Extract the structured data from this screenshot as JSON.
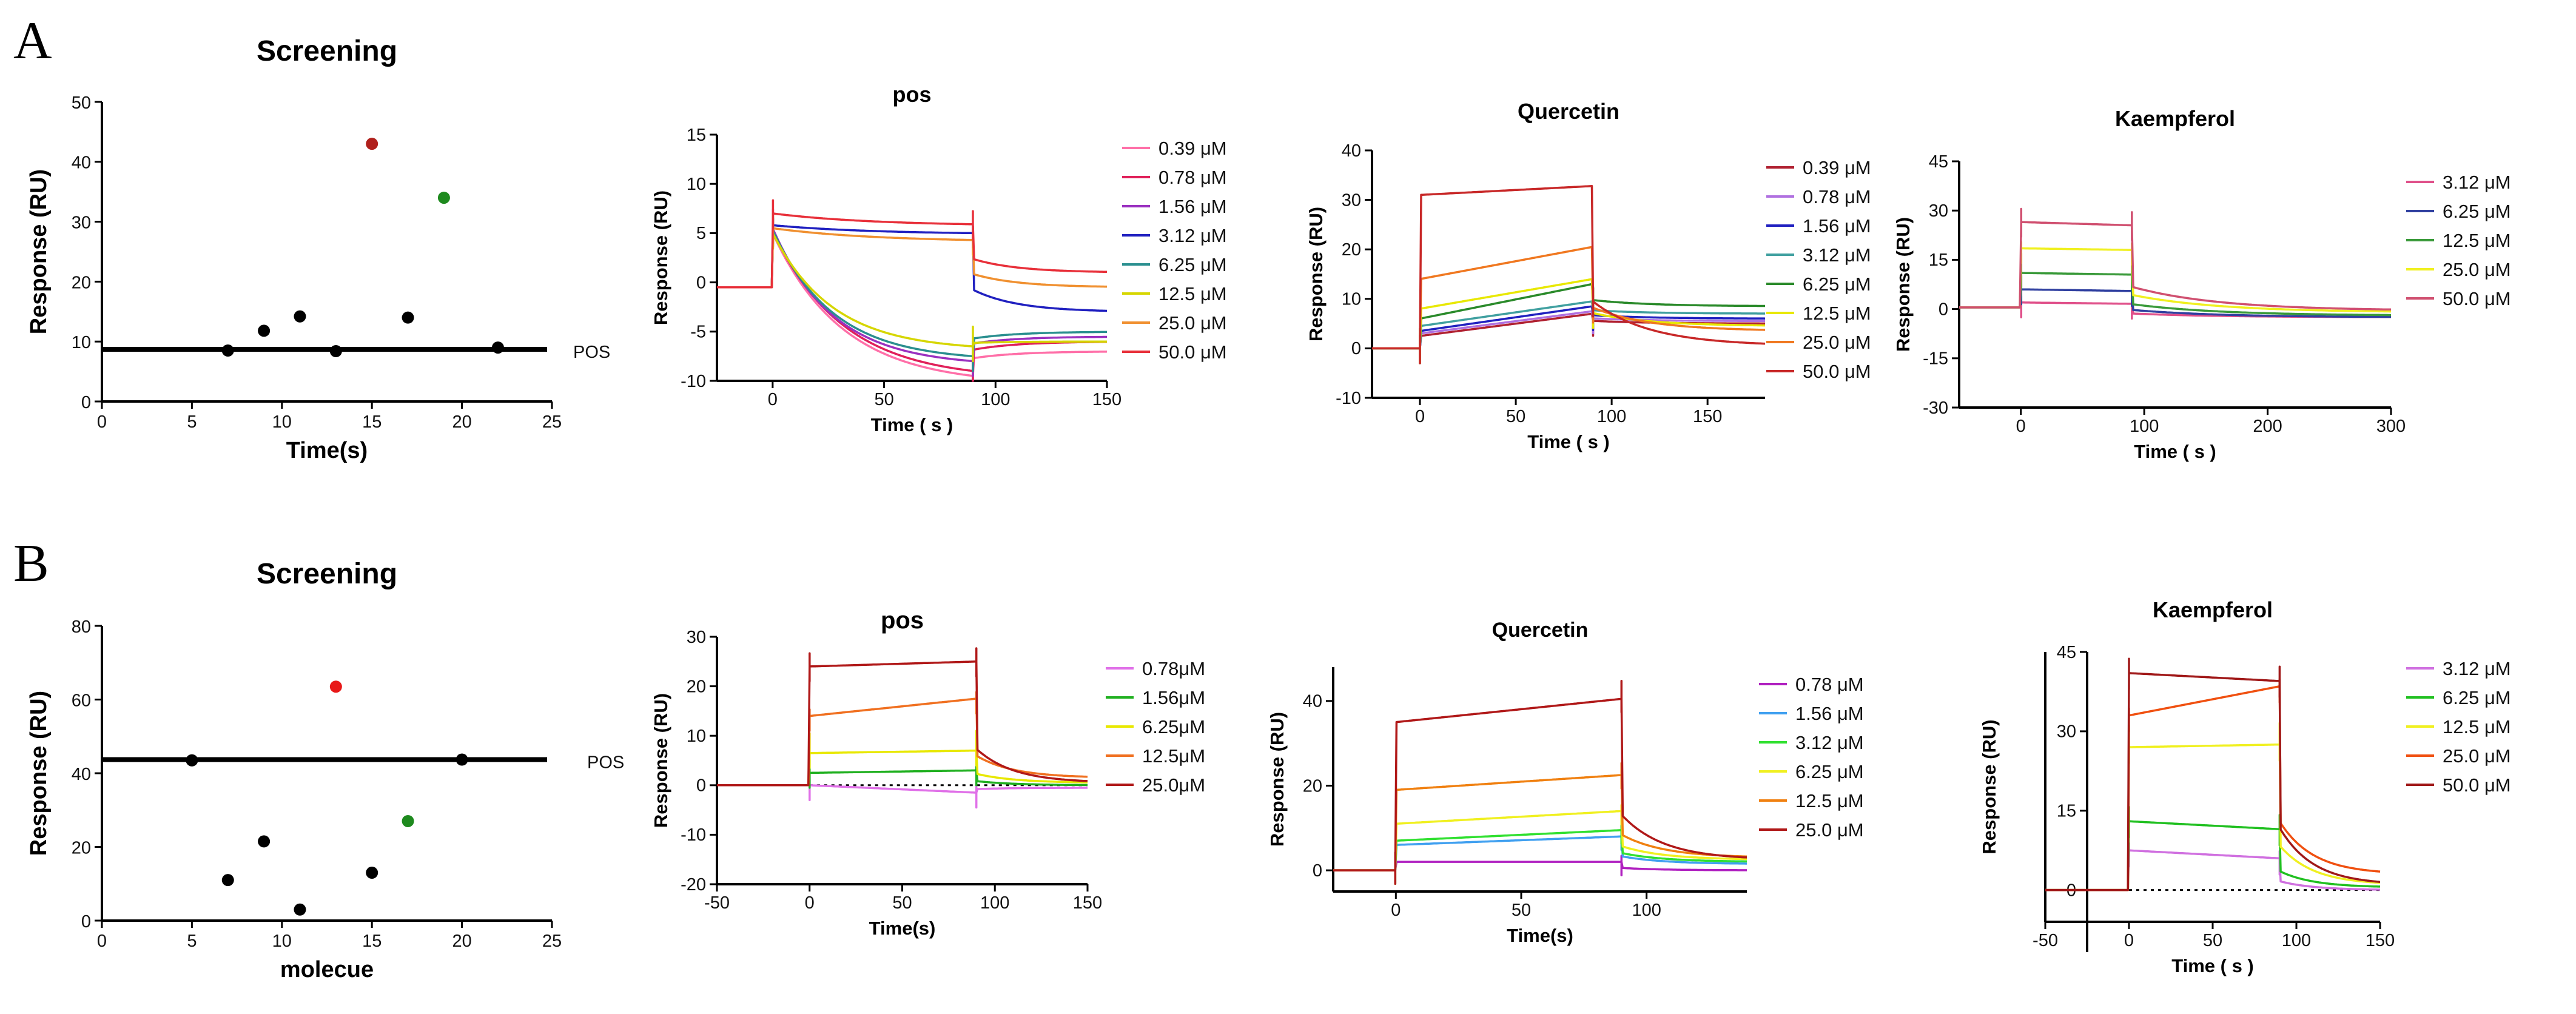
{
  "panels": [
    {
      "label": "A"
    },
    {
      "label": "B"
    }
  ],
  "chart_data": [
    {
      "id": "A1",
      "type": "scatter",
      "panel": "A",
      "title": "Screening",
      "xlabel": "Time(s)",
      "ylabel": "Response (RU)",
      "xlim": [
        0,
        25
      ],
      "ylim": [
        0,
        50
      ],
      "xticks": [
        0,
        5,
        10,
        15,
        20,
        25
      ],
      "yticks": [
        0,
        10,
        20,
        30,
        40,
        50
      ],
      "points": [
        {
          "x": 7,
          "y": 8.5,
          "color": "#000000"
        },
        {
          "x": 9,
          "y": 11.8,
          "color": "#000000"
        },
        {
          "x": 11,
          "y": 14.2,
          "color": "#000000"
        },
        {
          "x": 13,
          "y": 8.4,
          "color": "#000000"
        },
        {
          "x": 15,
          "y": 43,
          "color": "#b0201c"
        },
        {
          "x": 17,
          "y": 14,
          "color": "#000000"
        },
        {
          "x": 19,
          "y": 34,
          "color": "#1e8a1e"
        },
        {
          "x": 22,
          "y": 9,
          "color": "#000000"
        }
      ],
      "hline": {
        "y": 8.7,
        "label": "POS"
      }
    },
    {
      "id": "A2",
      "type": "line",
      "panel": "A",
      "title": "pos",
      "xlabel": "Time ( s )",
      "ylabel": "Response (RU)",
      "xlim": [
        -25,
        150
      ],
      "ylim": [
        -10,
        15
      ],
      "xticks": [
        0,
        50,
        100,
        150
      ],
      "yticks": [
        -10,
        -5,
        0,
        5,
        10,
        15
      ],
      "pre": -0.5,
      "t_on": 0,
      "t_off": 90,
      "series": [
        {
          "name": "0.39 μM",
          "color": "#ff6fa8",
          "plateau": 5.0,
          "end": -9.5,
          "shape": 0.35,
          "off_end": -7.0
        },
        {
          "name": "0.78 μM",
          "color": "#e0205a",
          "plateau": 5.2,
          "end": -9.0,
          "shape": 0.35,
          "off_end": -6.0
        },
        {
          "name": "1.56 μM",
          "color": "#9a30c0",
          "plateau": 5.5,
          "end": -8.0,
          "shape": 0.3,
          "off_end": -5.5
        },
        {
          "name": "3.12 μM",
          "color": "#2020c0",
          "plateau": 5.8,
          "end": 5.0,
          "shape": 0.5,
          "off_end": -3.0
        },
        {
          "name": "6.25 μM",
          "color": "#2a8f8f",
          "plateau": 5.3,
          "end": -7.5,
          "shape": 0.3,
          "off_end": -5.0
        },
        {
          "name": "12.5 μM",
          "color": "#d6d600",
          "plateau": 5.0,
          "end": -6.5,
          "shape": 0.3,
          "off_end": -6.0
        },
        {
          "name": "25.0 μM",
          "color": "#f09030",
          "plateau": 5.5,
          "end": 4.3,
          "shape": 0.5,
          "off_end": -0.5
        },
        {
          "name": "50.0 μM",
          "color": "#e8303a",
          "plateau": 7.0,
          "end": 5.9,
          "shape": 0.5,
          "off_end": 1.0
        }
      ]
    },
    {
      "id": "A3",
      "type": "line",
      "panel": "A",
      "title": "Quercetin",
      "xlabel": "Time ( s )",
      "ylabel": "Response (RU)",
      "xlim": [
        -25,
        180
      ],
      "ylim": [
        -10,
        40
      ],
      "xticks": [
        0,
        50,
        100,
        150
      ],
      "yticks": [
        -10,
        0,
        10,
        20,
        30,
        40
      ],
      "pre": 0,
      "t_on": 0,
      "t_off": 90,
      "series": [
        {
          "name": "0.39 μM",
          "color": "#b02030",
          "plateau": 2.5,
          "end": 7.0,
          "shape": 1,
          "off_end": 5.0
        },
        {
          "name": "0.78 μM",
          "color": "#b070e0",
          "plateau": 3.0,
          "end": 7.5,
          "shape": 1,
          "off_end": 5.5
        },
        {
          "name": "1.56 μM",
          "color": "#2020c0",
          "plateau": 3.5,
          "end": 8.5,
          "shape": 1,
          "off_end": 6.0
        },
        {
          "name": "3.12 μM",
          "color": "#40a0a0",
          "plateau": 4.5,
          "end": 9.5,
          "shape": 1,
          "off_end": 7.0
        },
        {
          "name": "6.25 μM",
          "color": "#2a8a2a",
          "plateau": 6.0,
          "end": 13.0,
          "shape": 1,
          "off_end": 8.5
        },
        {
          "name": "12.5 μM",
          "color": "#e8e800",
          "plateau": 8.0,
          "end": 14.0,
          "shape": 1,
          "off_end": 4.5
        },
        {
          "name": "25.0 μM",
          "color": "#f07820",
          "plateau": 14.0,
          "end": 20.5,
          "shape": 1,
          "off_end": 3.5
        },
        {
          "name": "50.0 μM",
          "color": "#c82828",
          "plateau": 31.0,
          "end": 32.8,
          "shape": 1,
          "off_end": 0.5
        }
      ]
    },
    {
      "id": "A4",
      "type": "line",
      "panel": "A",
      "title": "Kaempferol",
      "xlabel": "Time ( s )",
      "ylabel": "Response (RU)",
      "xlim": [
        -50,
        300
      ],
      "ylim": [
        -30,
        45
      ],
      "xticks": [
        0,
        100,
        200,
        300
      ],
      "yticks": [
        -30,
        -15,
        0,
        15,
        30,
        45
      ],
      "pre": 0.5,
      "t_on": 0,
      "t_off": 90,
      "series": [
        {
          "name": "3.12 μM",
          "color": "#e0508a",
          "plateau": 2.0,
          "end": 1.6,
          "shape": 1,
          "off_end": -2.5
        },
        {
          "name": "6.25 μM",
          "color": "#3040a0",
          "plateau": 6.0,
          "end": 5.5,
          "shape": 1,
          "off_end": -2.5
        },
        {
          "name": "12.5 μM",
          "color": "#3a9a3a",
          "plateau": 11.0,
          "end": 10.5,
          "shape": 1,
          "off_end": -2.0
        },
        {
          "name": "25.0 μM",
          "color": "#f0f020",
          "plateau": 18.5,
          "end": 18.0,
          "shape": 1,
          "off_end": -1.0
        },
        {
          "name": "50.0 μM",
          "color": "#d05070",
          "plateau": 26.5,
          "end": 25.5,
          "shape": 1,
          "off_end": -0.5
        }
      ]
    },
    {
      "id": "B1",
      "type": "scatter",
      "panel": "B",
      "title": "Screening",
      "xlabel": "molecue",
      "ylabel": "Response (RU)",
      "xlim": [
        0,
        25
      ],
      "ylim": [
        0,
        80
      ],
      "xticks": [
        0,
        5,
        10,
        15,
        20,
        25
      ],
      "yticks": [
        0,
        20,
        40,
        60,
        80
      ],
      "points": [
        {
          "x": 5,
          "y": 43.5,
          "color": "#000000"
        },
        {
          "x": 7,
          "y": 11,
          "color": "#000000"
        },
        {
          "x": 9,
          "y": 21.5,
          "color": "#000000"
        },
        {
          "x": 11,
          "y": 3,
          "color": "#000000"
        },
        {
          "x": 13,
          "y": 63.5,
          "color": "#e81818"
        },
        {
          "x": 15,
          "y": 13,
          "color": "#000000"
        },
        {
          "x": 17,
          "y": 27,
          "color": "#1e8a1e"
        },
        {
          "x": 20,
          "y": 43.7,
          "color": "#000000"
        }
      ],
      "hline": {
        "y": 43.7,
        "label": "POS"
      }
    },
    {
      "id": "B2",
      "type": "line",
      "panel": "B",
      "title": "pos",
      "xlabel": "Time(s)",
      "ylabel": "Response (RU)",
      "xlim": [
        -50,
        150
      ],
      "ylim": [
        -20,
        30
      ],
      "xticks": [
        -50,
        0,
        50,
        100,
        150
      ],
      "yticks": [
        -20,
        -10,
        0,
        10,
        20,
        30
      ],
      "pre": 0,
      "t_on": 0,
      "t_off": 90,
      "zero_line": true,
      "series": [
        {
          "name": "0.78μM",
          "color": "#e070e8",
          "plateau": 0.0,
          "end": -1.5,
          "shape": 1,
          "off_end": -0.5
        },
        {
          "name": "1.56μM",
          "color": "#20b020",
          "plateau": 2.5,
          "end": 3.0,
          "shape": 1,
          "off_end": 0.0
        },
        {
          "name": "6.25μM",
          "color": "#e8e800",
          "plateau": 6.5,
          "end": 7.0,
          "shape": 1,
          "off_end": 0.5
        },
        {
          "name": "12.5μM",
          "color": "#f07020",
          "plateau": 14.0,
          "end": 17.5,
          "shape": 1,
          "off_end": 1.5
        },
        {
          "name": "25.0μM",
          "color": "#b01818",
          "plateau": 24.0,
          "end": 25.0,
          "shape": 1,
          "off_end": 0.5
        }
      ]
    },
    {
      "id": "B3",
      "type": "line",
      "panel": "B",
      "title": "Quercetin",
      "xlabel": "Time(s)",
      "ylabel": "Response (RU)",
      "xlim": [
        -25,
        140
      ],
      "ylim": [
        -5,
        48
      ],
      "xticks": [
        0,
        50,
        100
      ],
      "yticks": [
        0,
        20,
        40
      ],
      "pre": 0,
      "t_on": 0,
      "t_off": 90,
      "series": [
        {
          "name": "0.78 μM",
          "color": "#b020c0",
          "plateau": 2.0,
          "end": 2.0,
          "shape": 1,
          "off_end": 0.0
        },
        {
          "name": "1.56 μM",
          "color": "#40a0f0",
          "plateau": 6.0,
          "end": 8.0,
          "shape": 1,
          "off_end": 1.5
        },
        {
          "name": "3.12 μM",
          "color": "#30e030",
          "plateau": 7.0,
          "end": 9.5,
          "shape": 1,
          "off_end": 2.0
        },
        {
          "name": "6.25 μM",
          "color": "#f0f020",
          "plateau": 11.0,
          "end": 14.0,
          "shape": 1,
          "off_end": 2.5
        },
        {
          "name": "12.5 μM",
          "color": "#f08010",
          "plateau": 19.0,
          "end": 22.5,
          "shape": 1,
          "off_end": 3.0
        },
        {
          "name": "25.0 μM",
          "color": "#b01818",
          "plateau": 35.0,
          "end": 40.5,
          "shape": 1,
          "off_end": 2.5
        }
      ]
    },
    {
      "id": "B4",
      "type": "line",
      "panel": "B",
      "title": "Kaempferol",
      "xlabel": "Time ( s )",
      "ylabel": "Response (RU)",
      "xlim": [
        -50,
        150
      ],
      "ylim": [
        -6,
        45
      ],
      "xticks": [
        -50,
        0,
        50,
        100,
        150
      ],
      "yticks": [
        0,
        15,
        30,
        45
      ],
      "pre": 0,
      "t_on": 0,
      "t_off": 90,
      "zero_line": true,
      "ybar_x": -25,
      "series": [
        {
          "name": "3.12 μM",
          "color": "#d070e0",
          "plateau": 7.5,
          "end": 6.0,
          "shape": 1,
          "off_end": 0.0
        },
        {
          "name": "6.25 μM",
          "color": "#20c020",
          "plateau": 13.0,
          "end": 11.5,
          "shape": 1,
          "off_end": 0.5
        },
        {
          "name": "12.5 μM",
          "color": "#f0f020",
          "plateau": 27.0,
          "end": 27.5,
          "shape": 1,
          "off_end": 1.0
        },
        {
          "name": "25.0 μM",
          "color": "#f05010",
          "plateau": 33.0,
          "end": 38.5,
          "shape": 1,
          "off_end": 3.0
        },
        {
          "name": "50.0 μM",
          "color": "#a01818",
          "plateau": 41.0,
          "end": 39.5,
          "shape": 1,
          "off_end": 1.0
        }
      ]
    }
  ]
}
